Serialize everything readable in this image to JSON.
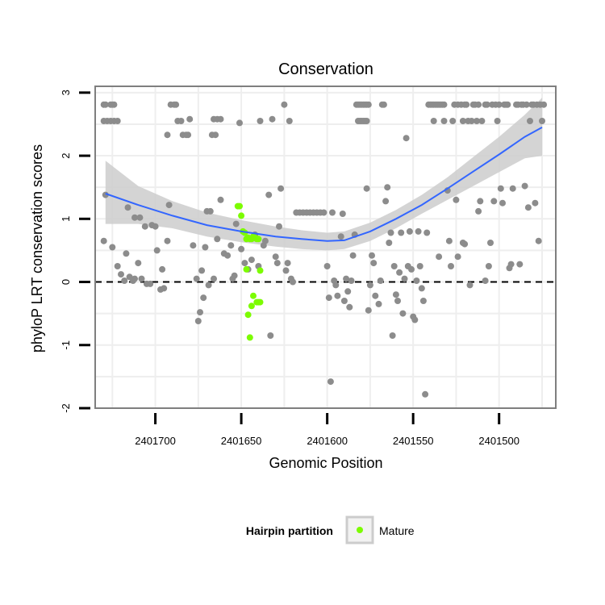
{
  "chart_data": {
    "type": "scatter",
    "title": "Conservation",
    "xlabel": "Genomic Position",
    "ylabel": "phyloP LRT conservation scores",
    "x_reversed": true,
    "xlim": [
      2401735,
      2401467
    ],
    "ylim": [
      -2.0,
      3.1
    ],
    "x_ticks": [
      2401700,
      2401650,
      2401600,
      2401550,
      2401500
    ],
    "x_tick_labels": [
      "2401700",
      "2401650",
      "2401600",
      "2401550",
      "2401500"
    ],
    "y_ticks": [
      -2,
      -1,
      0,
      1,
      2,
      3
    ],
    "y_tick_labels": [
      "-2",
      "-1",
      "0",
      "1",
      "2",
      "3"
    ],
    "reference_line": {
      "y": 0,
      "style": "dashed",
      "color": "#000000"
    },
    "grid": true,
    "colors": {
      "panel_border": "#7f7f7f",
      "grid": "#eeeeee",
      "gray_points": "#8c8c8c",
      "mature_points": "#7cfc00",
      "smooth_line": "#3366ff",
      "confidence_band": "#cccccc"
    },
    "legend": {
      "title": "Hairpin partition",
      "position": "bottom",
      "entries": [
        {
          "label": "Mature",
          "color": "#7cfc00"
        }
      ]
    },
    "series": [
      {
        "color_key": "gray_points",
        "points": [
          [
            2401730,
            2.81
          ],
          [
            2401729,
            2.81
          ],
          [
            2401726,
            2.81
          ],
          [
            2401725,
            2.81
          ],
          [
            2401724,
            2.81
          ],
          [
            2401730,
            2.55
          ],
          [
            2401728,
            2.55
          ],
          [
            2401726,
            2.55
          ],
          [
            2401724,
            2.55
          ],
          [
            2401722,
            2.55
          ],
          [
            2401729,
            1.38
          ],
          [
            2401730,
            0.65
          ],
          [
            2401725,
            0.55
          ],
          [
            2401722,
            0.25
          ],
          [
            2401720,
            0.12
          ],
          [
            2401718,
            0.02
          ],
          [
            2401717,
            0.45
          ],
          [
            2401715,
            0.08
          ],
          [
            2401713,
            0.02
          ],
          [
            2401712,
            0.05
          ],
          [
            2401710,
            0.3
          ],
          [
            2401708,
            0.05
          ],
          [
            2401716,
            1.18
          ],
          [
            2401712,
            1.02
          ],
          [
            2401709,
            1.02
          ],
          [
            2401706,
            0.88
          ],
          [
            2401705,
            -0.03
          ],
          [
            2401703,
            -0.03
          ],
          [
            2401702,
            0.9
          ],
          [
            2401700,
            0.88
          ],
          [
            2401699,
            0.5
          ],
          [
            2401697,
            -0.12
          ],
          [
            2401696,
            0.2
          ],
          [
            2401695,
            -0.1
          ],
          [
            2401693,
            0.65
          ],
          [
            2401692,
            1.22
          ],
          [
            2401691,
            2.81
          ],
          [
            2401689,
            2.81
          ],
          [
            2401688,
            2.81
          ],
          [
            2401687,
            2.55
          ],
          [
            2401685,
            2.55
          ],
          [
            2401684,
            2.33
          ],
          [
            2401682,
            2.33
          ],
          [
            2401681,
            2.33
          ],
          [
            2401693,
            2.33
          ],
          [
            2401680,
            2.58
          ],
          [
            2401678,
            0.58
          ],
          [
            2401676,
            0.05
          ],
          [
            2401675,
            -0.62
          ],
          [
            2401674,
            -0.48
          ],
          [
            2401673,
            0.18
          ],
          [
            2401671,
            0.55
          ],
          [
            2401670,
            1.12
          ],
          [
            2401668,
            1.12
          ],
          [
            2401666,
            2.58
          ],
          [
            2401664,
            2.58
          ],
          [
            2401662,
            2.58
          ],
          [
            2401667,
            2.33
          ],
          [
            2401665,
            2.33
          ],
          [
            2401672,
            -0.25
          ],
          [
            2401669,
            -0.05
          ],
          [
            2401666,
            0.05
          ],
          [
            2401664,
            0.68
          ],
          [
            2401662,
            1.3
          ],
          [
            2401660,
            0.45
          ],
          [
            2401658,
            0.42
          ],
          [
            2401656,
            0.58
          ],
          [
            2401655,
            0.05
          ],
          [
            2401654,
            0.1
          ],
          [
            2401653,
            0.92
          ],
          [
            2401651,
            2.52
          ],
          [
            2401650,
            0.52
          ],
          [
            2401648,
            0.3
          ],
          [
            2401646,
            0.2
          ],
          [
            2401644,
            0.35
          ],
          [
            2401642,
            0.75
          ],
          [
            2401640,
            0.25
          ],
          [
            2401639,
            2.55
          ],
          [
            2401637,
            0.58
          ],
          [
            2401636,
            0.65
          ],
          [
            2401634,
            1.38
          ],
          [
            2401633,
            -0.85
          ],
          [
            2401632,
            2.58
          ],
          [
            2401630,
            0.4
          ],
          [
            2401629,
            0.3
          ],
          [
            2401628,
            0.88
          ],
          [
            2401627,
            1.48
          ],
          [
            2401625,
            2.81
          ],
          [
            2401624,
            0.18
          ],
          [
            2401623,
            0.3
          ],
          [
            2401622,
            2.55
          ],
          [
            2401621,
            0.05
          ],
          [
            2401620,
            0.0
          ],
          [
            2401618,
            1.1
          ],
          [
            2401616,
            1.1
          ],
          [
            2401614,
            1.1
          ],
          [
            2401612,
            1.1
          ],
          [
            2401610,
            1.1
          ],
          [
            2401608,
            1.1
          ],
          [
            2401606,
            1.1
          ],
          [
            2401604,
            1.1
          ],
          [
            2401602,
            1.1
          ],
          [
            2401600,
            0.25
          ],
          [
            2401599,
            -0.25
          ],
          [
            2401598,
            -1.58
          ],
          [
            2401597,
            1.1
          ],
          [
            2401596,
            0.02
          ],
          [
            2401595,
            -0.05
          ],
          [
            2401594,
            -0.22
          ],
          [
            2401592,
            0.72
          ],
          [
            2401591,
            1.08
          ],
          [
            2401590,
            -0.3
          ],
          [
            2401589,
            0.05
          ],
          [
            2401588,
            -0.15
          ],
          [
            2401587,
            -0.4
          ],
          [
            2401586,
            0.02
          ],
          [
            2401585,
            0.42
          ],
          [
            2401584,
            0.75
          ],
          [
            2401583,
            2.81
          ],
          [
            2401582,
            2.81
          ],
          [
            2401581,
            2.81
          ],
          [
            2401580,
            2.81
          ],
          [
            2401579,
            2.81
          ],
          [
            2401578,
            2.81
          ],
          [
            2401577,
            2.81
          ],
          [
            2401576,
            2.81
          ],
          [
            2401582,
            2.55
          ],
          [
            2401581,
            2.55
          ],
          [
            2401580,
            2.55
          ],
          [
            2401579,
            2.55
          ],
          [
            2401578,
            2.55
          ],
          [
            2401577,
            2.55
          ],
          [
            2401577,
            1.48
          ],
          [
            2401576,
            -0.45
          ],
          [
            2401575,
            -0.05
          ],
          [
            2401574,
            0.42
          ],
          [
            2401573,
            0.3
          ],
          [
            2401572,
            -0.22
          ],
          [
            2401570,
            -0.35
          ],
          [
            2401569,
            0.02
          ],
          [
            2401568,
            2.81
          ],
          [
            2401567,
            2.81
          ],
          [
            2401566,
            1.28
          ],
          [
            2401565,
            1.5
          ],
          [
            2401564,
            0.62
          ],
          [
            2401563,
            0.78
          ],
          [
            2401562,
            -0.85
          ],
          [
            2401561,
            0.25
          ],
          [
            2401560,
            -0.2
          ],
          [
            2401559,
            -0.3
          ],
          [
            2401558,
            0.15
          ],
          [
            2401557,
            0.78
          ],
          [
            2401556,
            -0.5
          ],
          [
            2401555,
            0.05
          ],
          [
            2401554,
            2.28
          ],
          [
            2401553,
            0.25
          ],
          [
            2401552,
            0.8
          ],
          [
            2401551,
            0.2
          ],
          [
            2401550,
            -0.55
          ],
          [
            2401549,
            -0.6
          ],
          [
            2401548,
            0.02
          ],
          [
            2401547,
            0.8
          ],
          [
            2401546,
            0.25
          ],
          [
            2401545,
            -0.1
          ],
          [
            2401544,
            -0.3
          ],
          [
            2401543,
            -1.78
          ],
          [
            2401542,
            0.78
          ],
          [
            2401541,
            2.81
          ],
          [
            2401540,
            2.81
          ],
          [
            2401539,
            2.81
          ],
          [
            2401538,
            2.81
          ],
          [
            2401537,
            2.81
          ],
          [
            2401536,
            2.81
          ],
          [
            2401535,
            2.81
          ],
          [
            2401534,
            2.81
          ],
          [
            2401533,
            2.81
          ],
          [
            2401532,
            2.81
          ],
          [
            2401538,
            2.55
          ],
          [
            2401532,
            2.55
          ],
          [
            2401530,
            1.45
          ],
          [
            2401529,
            0.65
          ],
          [
            2401528,
            0.25
          ],
          [
            2401527,
            2.55
          ],
          [
            2401526,
            2.81
          ],
          [
            2401524,
            2.81
          ],
          [
            2401522,
            2.81
          ],
          [
            2401521,
            2.55
          ],
          [
            2401520,
            2.81
          ],
          [
            2401519,
            2.81
          ],
          [
            2401518,
            2.55
          ],
          [
            2401517,
            -0.05
          ],
          [
            2401516,
            2.55
          ],
          [
            2401515,
            2.81
          ],
          [
            2401514,
            2.81
          ],
          [
            2401513,
            2.55
          ],
          [
            2401512,
            2.81
          ],
          [
            2401511,
            1.28
          ],
          [
            2401510,
            2.55
          ],
          [
            2401508,
            2.81
          ],
          [
            2401507,
            2.81
          ],
          [
            2401506,
            0.25
          ],
          [
            2401505,
            0.62
          ],
          [
            2401504,
            2.81
          ],
          [
            2401503,
            1.28
          ],
          [
            2401502,
            2.81
          ],
          [
            2401501,
            2.55
          ],
          [
            2401500,
            2.81
          ],
          [
            2401499,
            1.48
          ],
          [
            2401498,
            1.25
          ],
          [
            2401497,
            2.81
          ],
          [
            2401496,
            2.81
          ],
          [
            2401495,
            2.81
          ],
          [
            2401494,
            0.22
          ],
          [
            2401493,
            0.28
          ],
          [
            2401492,
            1.48
          ],
          [
            2401490,
            2.81
          ],
          [
            2401489,
            2.81
          ],
          [
            2401488,
            0.28
          ],
          [
            2401487,
            2.81
          ],
          [
            2401486,
            2.81
          ],
          [
            2401485,
            1.52
          ],
          [
            2401484,
            2.81
          ],
          [
            2401483,
            1.18
          ],
          [
            2401482,
            2.55
          ],
          [
            2401481,
            2.81
          ],
          [
            2401480,
            2.81
          ],
          [
            2401479,
            1.25
          ],
          [
            2401478,
            2.81
          ],
          [
            2401477,
            0.65
          ],
          [
            2401476,
            2.81
          ],
          [
            2401475,
            2.55
          ],
          [
            2401474,
            2.81
          ],
          [
            2401520,
            0.6
          ],
          [
            2401512,
            1.12
          ],
          [
            2401508,
            0.02
          ],
          [
            2401524,
            0.4
          ],
          [
            2401535,
            0.4
          ],
          [
            2401525,
            1.3
          ],
          [
            2401521,
            0.62
          ]
        ]
      },
      {
        "name": "Mature",
        "color_key": "mature_points",
        "points": [
          [
            2401652,
            1.2
          ],
          [
            2401651,
            1.2
          ],
          [
            2401650,
            1.05
          ],
          [
            2401649,
            0.8
          ],
          [
            2401648,
            0.78
          ],
          [
            2401647,
            0.68
          ],
          [
            2401646,
            0.7
          ],
          [
            2401645,
            0.68
          ],
          [
            2401644,
            0.68
          ],
          [
            2401643,
            0.72
          ],
          [
            2401642,
            0.7
          ],
          [
            2401641,
            0.68
          ],
          [
            2401640,
            0.68
          ],
          [
            2401639,
            0.18
          ],
          [
            2401647,
            0.2
          ],
          [
            2401646,
            -0.52
          ],
          [
            2401645,
            -0.88
          ],
          [
            2401644,
            -0.38
          ],
          [
            2401643,
            -0.22
          ],
          [
            2401641,
            -0.32
          ],
          [
            2401640,
            -0.32
          ],
          [
            2401639,
            -0.32
          ]
        ]
      }
    ],
    "smooth": {
      "x": [
        2401729,
        2401710,
        2401690,
        2401670,
        2401650,
        2401630,
        2401615,
        2401600,
        2401590,
        2401575,
        2401560,
        2401545,
        2401530,
        2401515,
        2401500,
        2401485,
        2401475
      ],
      "y": [
        1.4,
        1.22,
        1.05,
        0.9,
        0.8,
        0.72,
        0.68,
        0.65,
        0.66,
        0.8,
        1.0,
        1.22,
        1.48,
        1.75,
        2.02,
        2.3,
        2.45
      ],
      "upper": [
        1.92,
        1.52,
        1.28,
        1.1,
        0.98,
        0.88,
        0.82,
        0.78,
        0.8,
        0.94,
        1.14,
        1.38,
        1.66,
        1.98,
        2.3,
        2.65,
        2.92
      ],
      "lower": [
        0.92,
        0.92,
        0.85,
        0.72,
        0.63,
        0.56,
        0.52,
        0.5,
        0.52,
        0.65,
        0.85,
        1.08,
        1.3,
        1.52,
        1.74,
        1.96,
        2.0
      ]
    }
  }
}
